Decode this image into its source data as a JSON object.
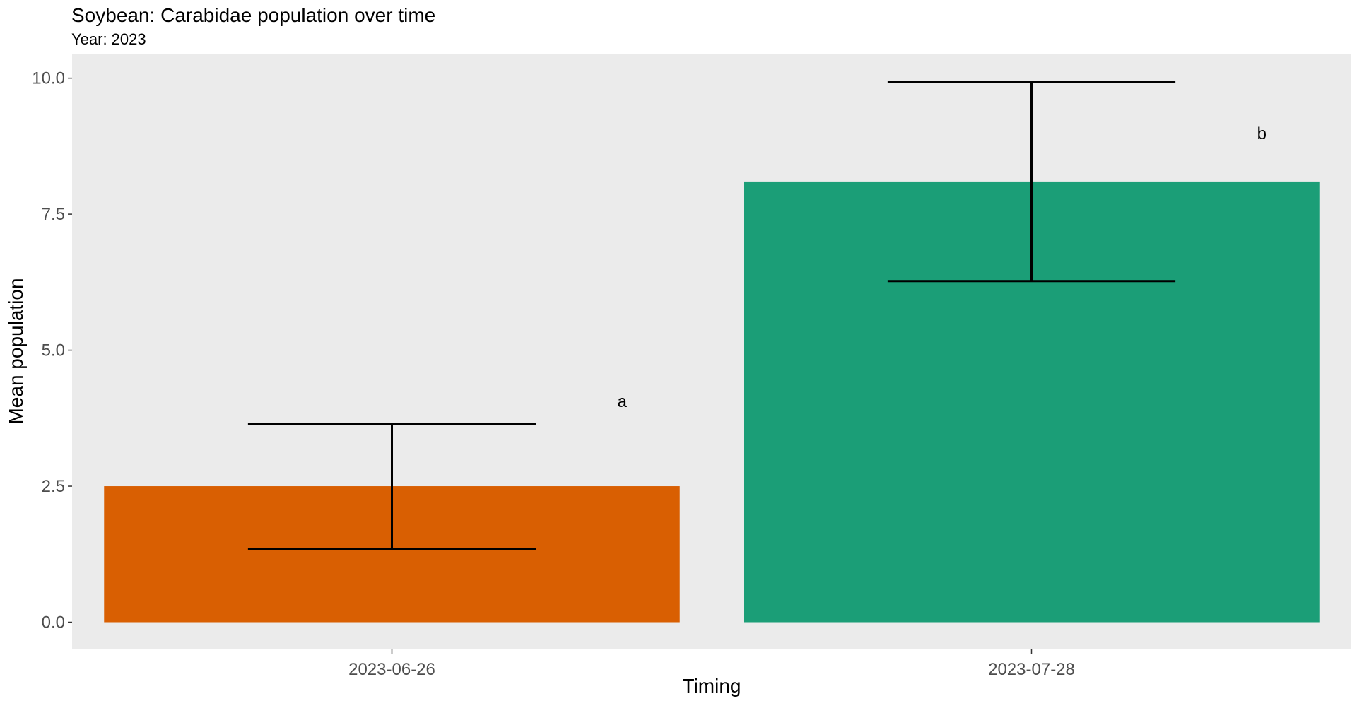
{
  "chart_data": {
    "type": "bar",
    "title": "Soybean: Carabidae population over time",
    "subtitle": "Year: 2023",
    "xlabel": "Timing",
    "ylabel": "Mean population",
    "categories": [
      "2023-06-26",
      "2023-07-28"
    ],
    "values": [
      2.5,
      8.1
    ],
    "error_low": [
      1.35,
      6.27
    ],
    "error_high": [
      3.65,
      9.93
    ],
    "significance_labels": [
      "a",
      "b"
    ],
    "bar_colors": [
      "#d95f02",
      "#1b9e77"
    ],
    "ylim": [
      -0.5,
      10.45
    ],
    "yticks": [
      0.0,
      2.5,
      5.0,
      7.5,
      10.0
    ],
    "ytick_labels": [
      "0.0",
      "2.5",
      "5.0",
      "7.5",
      "10.0"
    ],
    "grid": false,
    "panel_background": "#ebebeb"
  }
}
